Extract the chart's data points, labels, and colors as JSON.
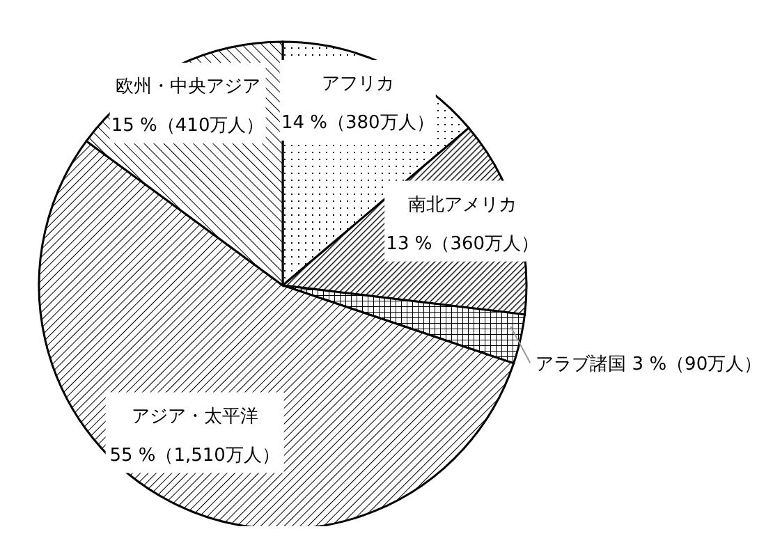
{
  "chart_data": {
    "type": "pie",
    "categories": [
      "アフリカ",
      "南北アメリカ",
      "アラブ諸国",
      "アジア・太平洋",
      "欧州・中央アジア"
    ],
    "values": [
      380,
      360,
      90,
      1510,
      410
    ],
    "value_labels": [
      "14 %（380万人）",
      "13 %（360万人）",
      "3 %（90万人）",
      "55 %（1,510万人）",
      "15 %（410万人）"
    ],
    "colors": [
      "#000000",
      "#000000",
      "#000000",
      "#000000",
      "#000000"
    ]
  }
}
